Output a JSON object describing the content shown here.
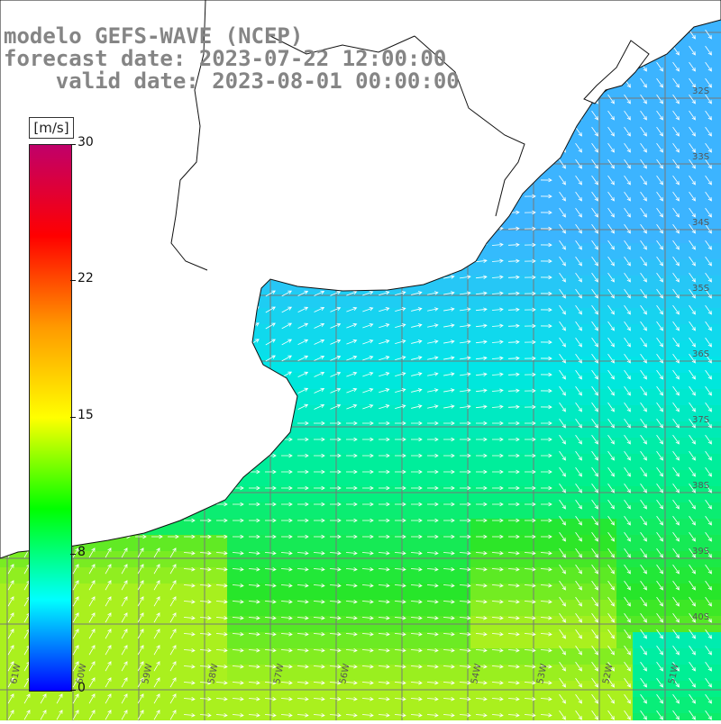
{
  "title": {
    "line1": "modelo GEFS-WAVE (NCEP)",
    "line2": "forecast date: 2023-07-22 12:00:00",
    "line3": "    valid date: 2023-08-01 00:00:00"
  },
  "colorbar": {
    "unit": "[m/s]",
    "ticks": [
      "30",
      "22",
      "15",
      "8",
      "0"
    ],
    "colors": [
      "#c0006a",
      "#ff0000",
      "#ff9900",
      "#ffff00",
      "#00ff00",
      "#00ffff",
      "#0000ff"
    ]
  },
  "lat_labels": [
    "32S",
    "33S",
    "34S",
    "35S",
    "36S",
    "37S",
    "38S",
    "39S",
    "40S"
  ],
  "lon_labels": [
    "61W",
    "60W",
    "59W",
    "58W",
    "57W",
    "56W",
    "54W",
    "53W",
    "52W",
    "51W"
  ],
  "colors": {
    "grid": "#777777",
    "coast": "#111111",
    "land": "#ffffff",
    "arrow": "#ffffff"
  }
}
